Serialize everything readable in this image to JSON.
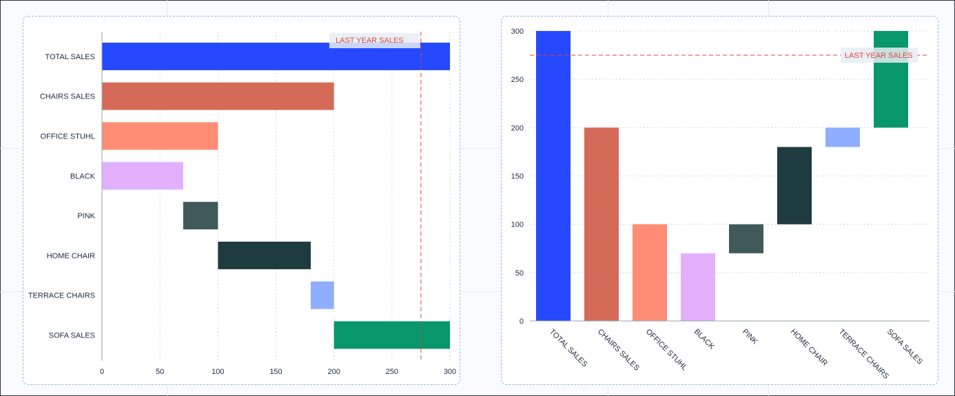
{
  "charts": [
    {
      "id": "left",
      "type": "bar",
      "orientation": "horizontal",
      "style": "waterfall",
      "categories": [
        "TOTAL SALES",
        "CHAIRS SALES",
        "OFFICE STUHL",
        "BLACK",
        "PINK",
        "HOME CHAIR",
        "TERRACE CHAIRS",
        "SOFA SALES"
      ],
      "ranges": [
        [
          0,
          300
        ],
        [
          0,
          200
        ],
        [
          0,
          100
        ],
        [
          0,
          70
        ],
        [
          70,
          100
        ],
        [
          100,
          180
        ],
        [
          180,
          200
        ],
        [
          200,
          300
        ]
      ],
      "colors": [
        "#2649ff",
        "#d66a58",
        "#ff8c75",
        "#e2b0fd",
        "#405a5c",
        "#1e3b40",
        "#90aeff",
        "#08976b"
      ],
      "x_ticks": [
        "0",
        "50",
        "100",
        "150",
        "200",
        "250",
        "300"
      ],
      "xlim": [
        0,
        300
      ],
      "reference_line": {
        "value": 275,
        "label": "LAST YEAR SALES",
        "color": "#d9483b"
      },
      "grid": "vertical dotted"
    },
    {
      "id": "right",
      "type": "bar",
      "orientation": "vertical",
      "style": "waterfall",
      "categories": [
        "TOTAL SALES",
        "CHAIRS SALES",
        "OFFICE STUHL",
        "BLACK",
        "PINK",
        "HOME CHAIR",
        "TERRACE CHAIRS",
        "SOFA SALES"
      ],
      "ranges": [
        [
          0,
          300
        ],
        [
          0,
          200
        ],
        [
          0,
          100
        ],
        [
          0,
          70
        ],
        [
          70,
          100
        ],
        [
          100,
          180
        ],
        [
          180,
          200
        ],
        [
          200,
          300
        ]
      ],
      "colors": [
        "#2649ff",
        "#d66a58",
        "#ff8c75",
        "#e2b0fd",
        "#405a5c",
        "#1e3b40",
        "#90aeff",
        "#08976b"
      ],
      "y_ticks": [
        "300",
        "250",
        "200",
        "150",
        "100",
        "50",
        "0"
      ],
      "ylim": [
        0,
        300
      ],
      "reference_line": {
        "value": 275,
        "label": "LAST YEAR SALES",
        "color": "#d9483b"
      },
      "grid": "horizontal dotted"
    }
  ]
}
